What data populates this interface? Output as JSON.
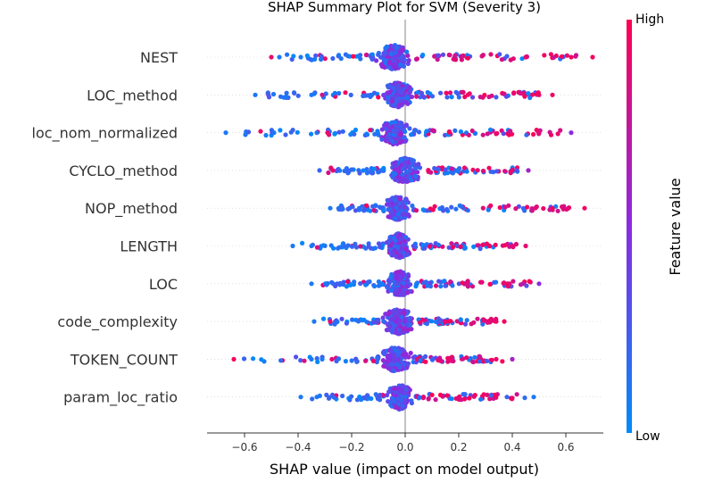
{
  "chart_data": {
    "type": "scatter",
    "title": "SHAP Summary Plot for SVM (Severity 3)",
    "xlabel": "SHAP value (impact on model output)",
    "ylabel": "",
    "xlim": [
      -0.74,
      0.74
    ],
    "xticks": [
      {
        "value": -0.6,
        "label": "−0.6"
      },
      {
        "value": -0.4,
        "label": "−0.4"
      },
      {
        "value": -0.2,
        "label": "−0.2"
      },
      {
        "value": 0.0,
        "label": "0.0"
      },
      {
        "value": 0.2,
        "label": "0.2"
      },
      {
        "value": 0.4,
        "label": "0.4"
      },
      {
        "value": 0.6,
        "label": "0.6"
      }
    ],
    "zero_line": 0.0,
    "colorbar": {
      "label": "Feature value",
      "high_label": "High",
      "low_label": "Low",
      "high_color": "#ff0052",
      "mid_color": "#8a2be2",
      "low_color": "#008bfb"
    },
    "features": [
      {
        "name": "NEST",
        "min": -0.5,
        "max": 0.7,
        "core_left": -0.12,
        "core_right": 0.03,
        "high_side": "right",
        "notable_points": [
          {
            "x": -0.5,
            "v": 0.9
          },
          {
            "x": -0.47,
            "v": 0.1
          },
          {
            "x": -0.39,
            "v": 0.1
          },
          {
            "x": 0.45,
            "v": 0.9
          },
          {
            "x": 0.62,
            "v": 0.95
          },
          {
            "x": 0.7,
            "v": 0.95
          }
        ]
      },
      {
        "name": "LOC_method",
        "min": -0.56,
        "max": 0.55,
        "core_left": -0.1,
        "core_right": 0.04,
        "high_side": "right",
        "notable_points": [
          {
            "x": -0.56,
            "v": 0.1
          },
          {
            "x": -0.35,
            "v": 0.1
          },
          {
            "x": -0.31,
            "v": 0.8
          },
          {
            "x": 0.5,
            "v": 0.9
          },
          {
            "x": 0.55,
            "v": 0.95
          }
        ]
      },
      {
        "name": "loc_nom_normalized",
        "min": -0.67,
        "max": 0.62,
        "core_left": -0.1,
        "core_right": 0.02,
        "high_side": "right",
        "notable_points": [
          {
            "x": -0.67,
            "v": 0.1
          },
          {
            "x": -0.49,
            "v": 0.1
          },
          {
            "x": -0.33,
            "v": 0.1
          },
          {
            "x": -0.29,
            "v": 0.9
          },
          {
            "x": 0.5,
            "v": 0.9
          },
          {
            "x": 0.62,
            "v": 0.5
          }
        ]
      },
      {
        "name": "CYCLO_method",
        "min": -0.32,
        "max": 0.46,
        "core_left": -0.08,
        "core_right": 0.08,
        "high_side": "right",
        "notable_points": [
          {
            "x": -0.32,
            "v": 0.2
          },
          {
            "x": -0.27,
            "v": 0.9
          },
          {
            "x": 0.4,
            "v": 0.9
          },
          {
            "x": 0.46,
            "v": 0.6
          }
        ]
      },
      {
        "name": "NOP_method",
        "min": -0.28,
        "max": 0.67,
        "core_left": -0.08,
        "core_right": 0.03,
        "high_side": "right",
        "notable_points": [
          {
            "x": -0.28,
            "v": 0.1
          },
          {
            "x": 0.55,
            "v": 0.95
          },
          {
            "x": 0.61,
            "v": 0.9
          },
          {
            "x": 0.67,
            "v": 0.95
          }
        ]
      },
      {
        "name": "LENGTH",
        "min": -0.42,
        "max": 0.45,
        "core_left": -0.08,
        "core_right": 0.03,
        "high_side": "right",
        "notable_points": [
          {
            "x": -0.42,
            "v": 0.1
          },
          {
            "x": -0.35,
            "v": 0.1
          },
          {
            "x": 0.4,
            "v": 0.9
          },
          {
            "x": 0.45,
            "v": 0.9
          }
        ]
      },
      {
        "name": "LOC",
        "min": -0.35,
        "max": 0.5,
        "core_left": -0.08,
        "core_right": 0.04,
        "high_side": "right",
        "notable_points": [
          {
            "x": -0.35,
            "v": 0.1
          },
          {
            "x": 0.44,
            "v": 0.7
          },
          {
            "x": 0.5,
            "v": 0.5
          }
        ]
      },
      {
        "name": "code_complexity",
        "min": -0.34,
        "max": 0.37,
        "core_left": -0.1,
        "core_right": 0.05,
        "high_side": "right",
        "notable_points": [
          {
            "x": -0.34,
            "v": 0.1
          },
          {
            "x": -0.28,
            "v": 0.9
          },
          {
            "x": 0.34,
            "v": 0.9
          },
          {
            "x": 0.37,
            "v": 0.95
          }
        ]
      },
      {
        "name": "TOKEN_COUNT",
        "min": -0.64,
        "max": 0.4,
        "core_left": -0.1,
        "core_right": 0.03,
        "high_side": "right",
        "notable_points": [
          {
            "x": -0.64,
            "v": 0.95
          },
          {
            "x": -0.35,
            "v": 0.1
          },
          {
            "x": -0.31,
            "v": 0.1
          },
          {
            "x": 0.34,
            "v": 0.9
          },
          {
            "x": 0.4,
            "v": 0.6
          }
        ]
      },
      {
        "name": "param_loc_ratio",
        "min": -0.39,
        "max": 0.48,
        "core_left": -0.08,
        "core_right": 0.04,
        "high_side": "right",
        "notable_points": [
          {
            "x": -0.39,
            "v": 0.1
          },
          {
            "x": -0.33,
            "v": 0.1
          },
          {
            "x": 0.38,
            "v": 0.2
          },
          {
            "x": 0.48,
            "v": 0.1
          }
        ]
      }
    ]
  }
}
